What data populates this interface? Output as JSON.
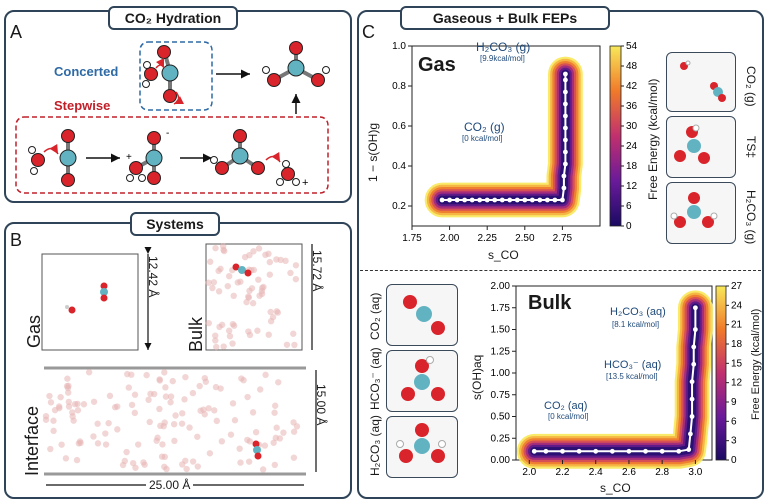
{
  "panels": {
    "A": {
      "letter": "A",
      "title": "CO₂ Hydration",
      "concerted": "Concerted",
      "stepwise": "Stepwise",
      "charge_minus": "-",
      "charge_plus": "+"
    },
    "B": {
      "letter": "B",
      "title": "Systems",
      "gas_label": "Gas",
      "bulk_label": "Bulk",
      "interface_label": "Interface",
      "dim_gas": "12.42 Å",
      "dim_bulk": "15.72 Å",
      "dim_interface_h": "15.00 Å",
      "dim_interface_w": "25.00 Å"
    },
    "C": {
      "letter": "C",
      "title": "Gaseous + Bulk FEPs",
      "gas_title": "Gas",
      "bulk_title": "Bulk"
    }
  },
  "gas_thumbs": [
    {
      "label": "CO₂ (g)"
    },
    {
      "label": "TS‡"
    },
    {
      "label": "H₂CO₃ (g)"
    }
  ],
  "bulk_thumbs": [
    {
      "label": "CO₂ (aq)"
    },
    {
      "label": "HCO₃⁻ (aq)"
    },
    {
      "label": "H₂CO₃ (aq)"
    }
  ],
  "colors": {
    "frame": "#2f4458",
    "concerted": "#2e6aa6",
    "stepwise": "#c0202a",
    "oxygen": "#d8242a",
    "carbon": "#62b3c2",
    "hydrogen": "#ffffff",
    "path": "#ffffff"
  },
  "chart_data": [
    {
      "type": "heatmap",
      "title": "Gas",
      "xlabel": "s_CO",
      "ylabel": "1 − s(OH)g",
      "xlim": [
        1.75,
        3.0
      ],
      "ylim": [
        0.1,
        1.0
      ],
      "xticks": [
        "1.75",
        "2.00",
        "2.25",
        "2.50",
        "2.75"
      ],
      "yticks": [
        "0.2",
        "0.4",
        "0.6",
        "0.8",
        "1.0"
      ],
      "colorbar": {
        "label": "Free Energy  (kcal/mol)",
        "min": 0,
        "max": 54,
        "ticks": [
          "0",
          "6",
          "12",
          "18",
          "24",
          "30",
          "36",
          "42",
          "48",
          "54"
        ]
      },
      "annotations": [
        {
          "name": "H₂CO₃ (g)",
          "value": "[9.9kcal/mol]",
          "x": 2.77,
          "y": 0.86
        },
        {
          "name": "CO₂ (g)",
          "value": "[0 kcal/mol]",
          "x": 1.95,
          "y": 0.23
        }
      ],
      "path": [
        [
          1.95,
          0.23
        ],
        [
          2.0,
          0.23
        ],
        [
          2.05,
          0.23
        ],
        [
          2.1,
          0.23
        ],
        [
          2.15,
          0.23
        ],
        [
          2.2,
          0.23
        ],
        [
          2.25,
          0.23
        ],
        [
          2.3,
          0.23
        ],
        [
          2.35,
          0.23
        ],
        [
          2.4,
          0.23
        ],
        [
          2.45,
          0.23
        ],
        [
          2.5,
          0.23
        ],
        [
          2.55,
          0.23
        ],
        [
          2.6,
          0.23
        ],
        [
          2.65,
          0.23
        ],
        [
          2.7,
          0.23
        ],
        [
          2.75,
          0.23
        ],
        [
          2.76,
          0.29
        ],
        [
          2.76,
          0.35
        ],
        [
          2.77,
          0.41
        ],
        [
          2.77,
          0.47
        ],
        [
          2.77,
          0.53
        ],
        [
          2.77,
          0.59
        ],
        [
          2.77,
          0.65
        ],
        [
          2.77,
          0.71
        ],
        [
          2.77,
          0.77
        ],
        [
          2.77,
          0.83
        ],
        [
          2.77,
          0.86
        ]
      ]
    },
    {
      "type": "heatmap",
      "title": "Bulk",
      "xlabel": "s_CO",
      "ylabel": "s(OH)aq",
      "xlim": [
        1.92,
        3.1
      ],
      "ylim": [
        0.0,
        2.0
      ],
      "xticks": [
        "2.0",
        "2.2",
        "2.4",
        "2.6",
        "2.8",
        "3.0"
      ],
      "yticks": [
        "0.00",
        "0.25",
        "0.50",
        "0.75",
        "1.00",
        "1.25",
        "1.50",
        "1.75",
        "2.00"
      ],
      "colorbar": {
        "label": "Free Energy  (kcal/mol)",
        "min": 0,
        "max": 27,
        "ticks": [
          "0",
          "3",
          "6",
          "9",
          "12",
          "15",
          "18",
          "21",
          "24",
          "27"
        ]
      },
      "annotations": [
        {
          "name": "H₂CO₃ (aq)",
          "value": "[8.1 kcal/mol]",
          "x": 3.0,
          "y": 1.75
        },
        {
          "name": "HCO₃⁻ (aq)",
          "value": "[13.5 kcal/mol]",
          "x": 2.98,
          "y": 0.95
        },
        {
          "name": "CO₂ (aq)",
          "value": "[0 kcal/mol]",
          "x": 2.03,
          "y": 0.1
        }
      ],
      "path": [
        [
          2.03,
          0.1
        ],
        [
          2.1,
          0.1
        ],
        [
          2.2,
          0.1
        ],
        [
          2.3,
          0.1
        ],
        [
          2.4,
          0.1
        ],
        [
          2.5,
          0.1
        ],
        [
          2.6,
          0.1
        ],
        [
          2.7,
          0.1
        ],
        [
          2.8,
          0.1
        ],
        [
          2.9,
          0.1
        ],
        [
          2.96,
          0.12
        ],
        [
          2.97,
          0.3
        ],
        [
          2.98,
          0.5
        ],
        [
          2.98,
          0.7
        ],
        [
          2.98,
          0.9
        ],
        [
          2.99,
          1.1
        ],
        [
          2.99,
          1.3
        ],
        [
          3.0,
          1.5
        ],
        [
          3.0,
          1.75
        ]
      ]
    }
  ]
}
